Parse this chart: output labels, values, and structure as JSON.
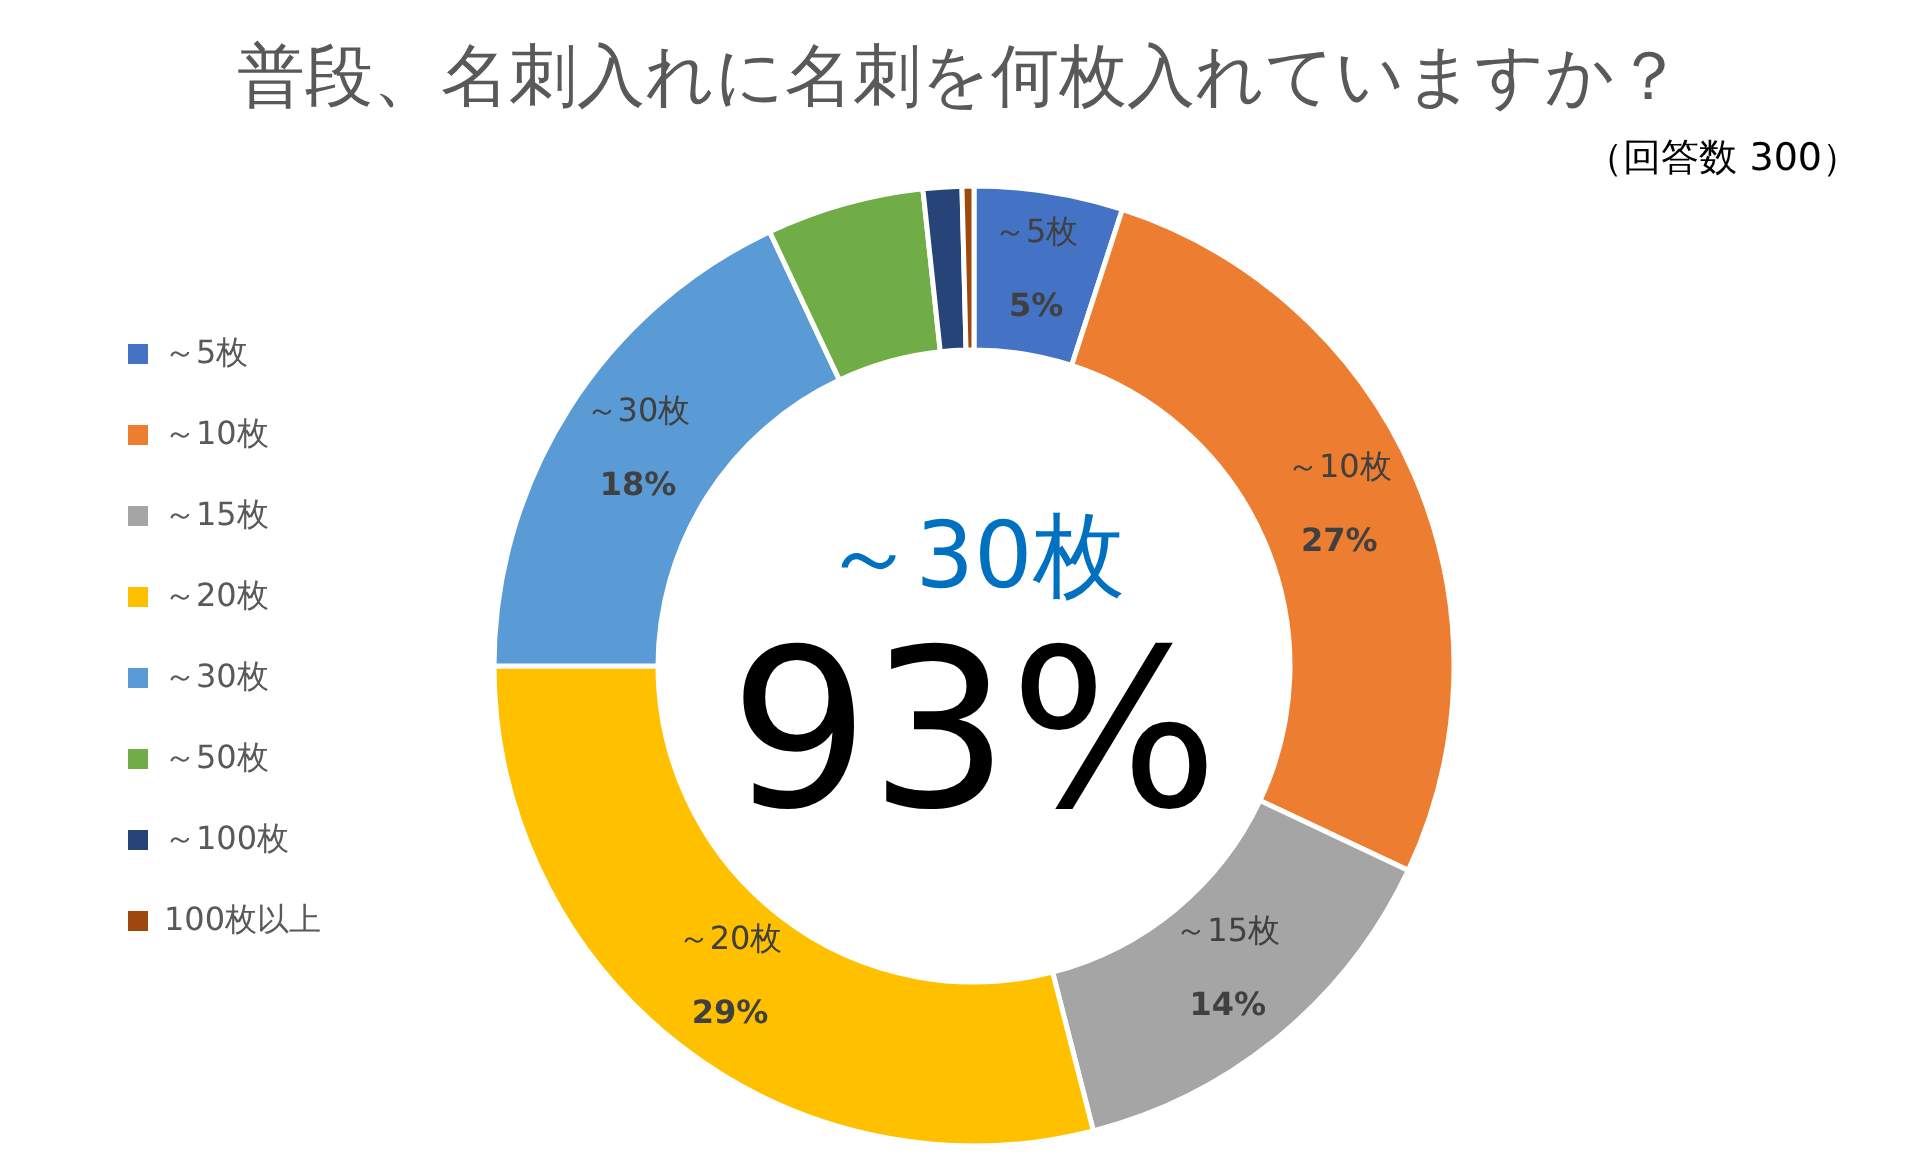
{
  "chart_data": {
    "type": "donut",
    "title": "普段、名刺入れに名刺を何枚入れていますか？",
    "subtitle": "（回答数 300）",
    "categories": [
      "～5枚",
      "～10枚",
      "～15枚",
      "～20枚",
      "～30枚",
      "～50枚",
      "～100枚",
      "100枚以上"
    ],
    "values": [
      5,
      27,
      14,
      29,
      18,
      5.3,
      1.3,
      0.4
    ],
    "colors": [
      "#4472c4",
      "#ed7d31",
      "#a5a5a5",
      "#ffc000",
      "#5b9bd5",
      "#70ad47",
      "#264478",
      "#9e480e"
    ],
    "value_labels": [
      "5%",
      "27%",
      "14%",
      "29%",
      "18%",
      null,
      null,
      null
    ],
    "annotations": [
      "～30枚",
      "93%"
    ],
    "legend": "left"
  }
}
